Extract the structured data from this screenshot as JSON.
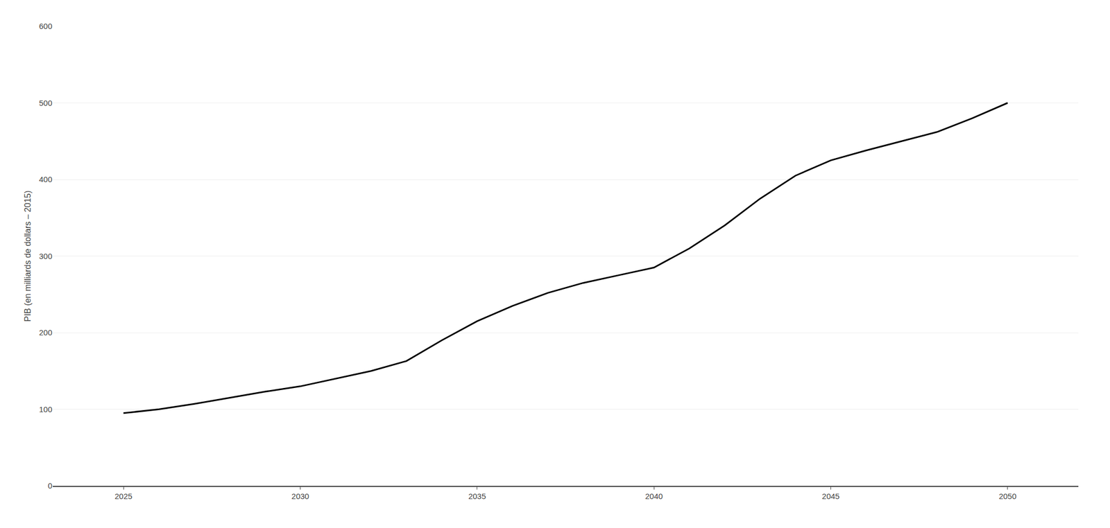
{
  "chart_data": {
    "type": "line",
    "x": [
      2025,
      2026,
      2027,
      2028,
      2029,
      2030,
      2031,
      2032,
      2033,
      2034,
      2035,
      2036,
      2037,
      2038,
      2039,
      2040,
      2041,
      2042,
      2043,
      2044,
      2045,
      2046,
      2047,
      2048,
      2049,
      2050
    ],
    "values": [
      95,
      100,
      107,
      115,
      123,
      130,
      140,
      150,
      163,
      190,
      215,
      235,
      252,
      265,
      275,
      285,
      310,
      340,
      375,
      405,
      425,
      438,
      450,
      462,
      480,
      500
    ],
    "color": "#000000",
    "ylabel": "PIB (en milliards de dollars – 2015)",
    "xlim": [
      2023,
      2052
    ],
    "xticks": [
      2025,
      2030,
      2035,
      2040,
      2045,
      2050
    ],
    "ylim": [
      0,
      600
    ],
    "yticks": [
      0,
      100,
      200,
      300,
      400,
      500,
      600
    ],
    "grid": "y"
  }
}
